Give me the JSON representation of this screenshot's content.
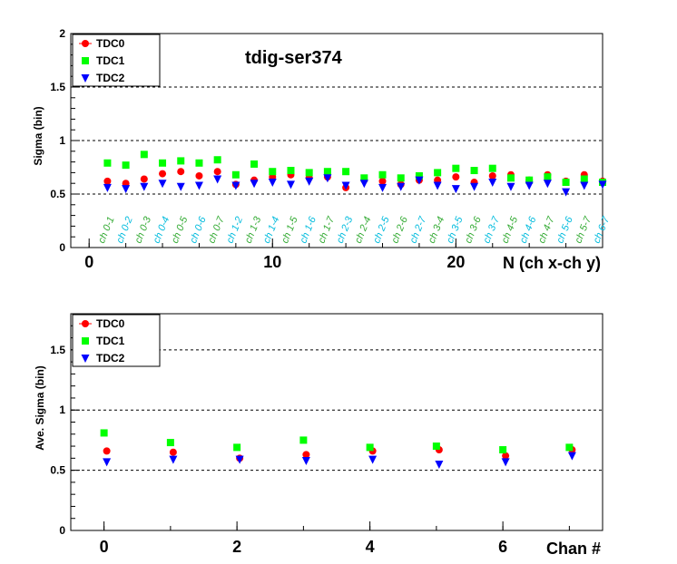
{
  "colors": {
    "TDC0": "#ff0000",
    "TDC1": "#00ff00",
    "TDC2": "#0000ff",
    "pair_label_green": "#33aa33",
    "pair_label_cyan": "#00bbdd",
    "grid": "#000000"
  },
  "chart_data": [
    {
      "type": "scatter",
      "title": "tdig-ser374",
      "xlabel": "N (ch x-ch y)",
      "ylabel": "Sigma (bin)",
      "xlim": [
        -1,
        28
      ],
      "ylim": [
        0,
        2
      ],
      "y_ticks": [
        "0",
        "0.5",
        "1",
        "1.5",
        "2"
      ],
      "x_ticks": [
        "0",
        "10",
        "20"
      ],
      "x_tick_values": [
        0,
        10,
        20
      ],
      "y_tick_values": [
        0,
        0.5,
        1,
        1.5,
        2
      ],
      "grid_y": [
        0.5,
        1,
        1.5
      ],
      "legend_position": "top-left",
      "pair_labels": [
        "ch 0-1",
        "ch 0-2",
        "ch 0-3",
        "ch 0-4",
        "ch 0-5",
        "ch 0-6",
        "ch 0-7",
        "ch 1-2",
        "ch 1-3",
        "ch 1-4",
        "ch 1-5",
        "ch 1-6",
        "ch 1-7",
        "ch 2-3",
        "ch 2-4",
        "ch 2-5",
        "ch 2-6",
        "ch 2-7",
        "ch 3-4",
        "ch 3-5",
        "ch 3-6",
        "ch 3-7",
        "ch 4-5",
        "ch 4-6",
        "ch 4-7",
        "ch 5-6",
        "ch 5-7",
        "ch 6-7"
      ],
      "x": [
        1,
        2,
        3,
        4,
        5,
        6,
        7,
        8,
        9,
        10,
        11,
        12,
        13,
        14,
        15,
        16,
        17,
        18,
        19,
        20,
        21,
        22,
        23,
        24,
        25,
        26,
        27,
        28
      ],
      "series": [
        {
          "name": "TDC0",
          "marker": "circle",
          "values": [
            0.62,
            0.6,
            0.64,
            0.69,
            0.71,
            0.67,
            0.71,
            0.59,
            0.63,
            0.66,
            0.68,
            0.65,
            0.66,
            0.56,
            0.63,
            0.62,
            0.59,
            0.63,
            0.63,
            0.66,
            0.61,
            0.67,
            0.68,
            0.63,
            0.68,
            0.62,
            0.68,
            0.62
          ]
        },
        {
          "name": "TDC1",
          "marker": "square",
          "values": [
            0.79,
            0.77,
            0.87,
            0.79,
            0.81,
            0.79,
            0.82,
            0.68,
            0.78,
            0.71,
            0.72,
            0.7,
            0.71,
            0.71,
            0.65,
            0.68,
            0.65,
            0.67,
            0.7,
            0.74,
            0.72,
            0.74,
            0.65,
            0.63,
            0.66,
            0.61,
            0.64,
            0.61
          ]
        },
        {
          "name": "TDC2",
          "marker": "triangle-down",
          "values": [
            0.56,
            0.55,
            0.57,
            0.6,
            0.57,
            0.58,
            0.64,
            0.58,
            0.6,
            0.61,
            0.59,
            0.62,
            0.65,
            0.58,
            0.6,
            0.56,
            0.57,
            0.63,
            0.58,
            0.55,
            0.57,
            0.61,
            0.57,
            0.58,
            0.6,
            0.52,
            0.58,
            0.59
          ]
        }
      ]
    },
    {
      "type": "scatter",
      "title": "",
      "xlabel": "Chan #",
      "ylabel": "Ave. Sigma (bin)",
      "xlim": [
        -0.5,
        7.5
      ],
      "ylim": [
        0,
        1.8
      ],
      "y_ticks": [
        "0",
        "0.5",
        "1",
        "1.5"
      ],
      "x_ticks": [
        "0",
        "2",
        "4",
        "6"
      ],
      "x_tick_values": [
        0,
        2,
        4,
        6
      ],
      "y_tick_values": [
        0,
        0.5,
        1,
        1.5
      ],
      "grid_y": [
        0.5,
        1,
        1.5
      ],
      "legend_position": "top-left",
      "x": [
        0,
        1,
        2,
        3,
        4,
        5,
        6,
        7
      ],
      "series": [
        {
          "name": "TDC0",
          "marker": "circle",
          "values": [
            0.66,
            0.65,
            0.6,
            0.63,
            0.66,
            0.67,
            0.62,
            0.67
          ]
        },
        {
          "name": "TDC1",
          "marker": "square",
          "values": [
            0.81,
            0.73,
            0.69,
            0.75,
            0.69,
            0.7,
            0.67,
            0.69
          ]
        },
        {
          "name": "TDC2",
          "marker": "triangle-down",
          "values": [
            0.57,
            0.59,
            0.59,
            0.58,
            0.59,
            0.55,
            0.57,
            0.62
          ]
        }
      ]
    }
  ]
}
